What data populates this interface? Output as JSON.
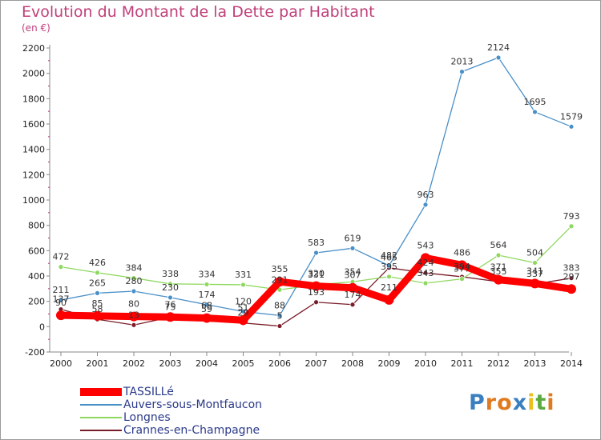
{
  "chart_data": {
    "type": "line",
    "title": "Evolution du Montant de la Dette par Habitant",
    "subtitle": "(en €)",
    "x": [
      2000,
      2001,
      2002,
      2003,
      2004,
      2005,
      2006,
      2007,
      2008,
      2009,
      2010,
      2011,
      2012,
      2013,
      2014
    ],
    "ylim": [
      -200,
      2200
    ],
    "yticks": [
      -200,
      0,
      200,
      400,
      600,
      800,
      1000,
      1200,
      1400,
      1600,
      1800,
      2000,
      2200
    ],
    "grid": false,
    "legend_position": "bottom-left",
    "series": [
      {
        "name": "TASSILLé",
        "color": "#ff0000",
        "values": [
          90,
          85,
          80,
          76,
          68,
          51,
          355,
          320,
          307,
          211,
          543,
          486,
          371,
          341,
          297
        ]
      },
      {
        "name": "Auvers-sous-Montfaucon",
        "color": "#4a90c8",
        "values": [
          211,
          265,
          280,
          230,
          174,
          120,
          88,
          583,
          619,
          482,
          963,
          2013,
          2124,
          1695,
          1579
        ]
      },
      {
        "name": "Longnes",
        "color": "#8fd860",
        "values": [
          472,
          426,
          384,
          338,
          334,
          331,
          291,
          331,
          354,
          395,
          343,
          377,
          564,
          504,
          793
        ]
      },
      {
        "name": "Crannes-en-Champagne",
        "color": "#7a1d2a",
        "values": [
          137,
          58,
          13,
          75,
          59,
          29,
          5,
          193,
          174,
          465,
          424,
          394,
          355,
          337,
          383
        ]
      }
    ]
  },
  "legend": [
    {
      "name": "TASSILLé"
    },
    {
      "name": "Auvers-sous-Montfaucon"
    },
    {
      "name": "Longnes"
    },
    {
      "name": "Crannes-en-Champagne"
    }
  ],
  "logo": {
    "letters": [
      "P",
      "r",
      "o",
      "x",
      "i",
      "t",
      "i"
    ],
    "colors": [
      "#3a7fc0",
      "#e07a20",
      "#e07a20",
      "#3a7fc0",
      "#e8c020",
      "#5aaa40",
      "#e07a20"
    ]
  }
}
